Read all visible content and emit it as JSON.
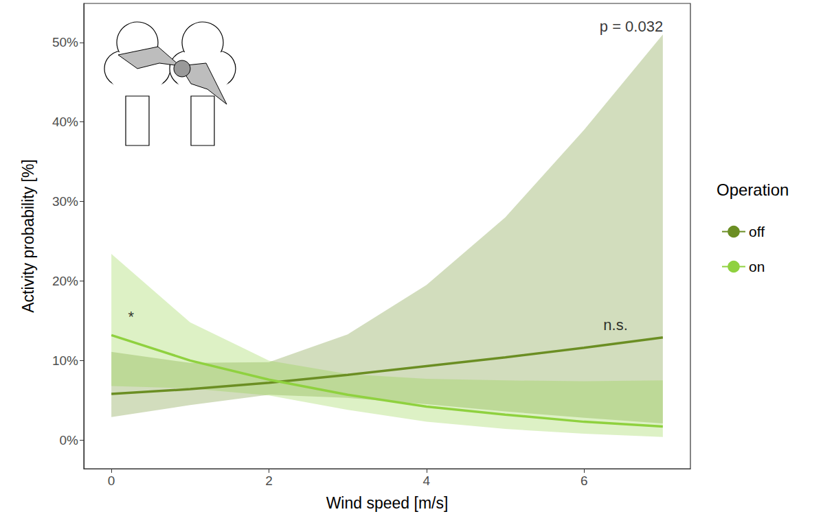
{
  "chart_data": {
    "type": "line",
    "xlabel": "Wind speed [m/s]",
    "ylabel": "Activity probability [%]",
    "x": [
      0,
      1,
      2,
      3,
      4,
      5,
      6,
      7
    ],
    "xlim": [
      -0.35,
      7.35
    ],
    "ylim": [
      -3.6,
      54.9
    ],
    "xticks": [
      0,
      2,
      4,
      6
    ],
    "yticks": [
      {
        "value": 0,
        "label": "0%"
      },
      {
        "value": 10,
        "label": "10%"
      },
      {
        "value": 20,
        "label": "20%"
      },
      {
        "value": 30,
        "label": "30%"
      },
      {
        "value": 40,
        "label": "40%"
      },
      {
        "value": 50,
        "label": "50%"
      }
    ],
    "grid": false,
    "legend": "right",
    "legend_title": "Operation",
    "series": [
      {
        "name": "off",
        "color": "#6b8e23",
        "values": [
          5.8,
          6.4,
          7.2,
          8.2,
          9.3,
          10.4,
          11.6,
          12.9
        ],
        "lower": [
          2.9,
          4.4,
          5.7,
          5.3,
          4.5,
          3.6,
          2.8,
          2.1
        ],
        "upper": [
          11.1,
          9.7,
          9.8,
          13.3,
          19.5,
          28.0,
          39.0,
          51.0
        ]
      },
      {
        "name": "on",
        "color": "#8fd13f",
        "values": [
          13.2,
          10.0,
          7.6,
          5.7,
          4.2,
          3.2,
          2.3,
          1.7
        ],
        "lower": [
          6.8,
          6.5,
          5.6,
          3.8,
          2.3,
          1.4,
          0.8,
          0.4
        ],
        "upper": [
          23.4,
          14.8,
          10.0,
          8.3,
          7.7,
          7.5,
          7.4,
          7.5
        ]
      }
    ],
    "annotations": [
      {
        "text": "p = 0.032",
        "x": 6.6,
        "y": 52.0
      },
      {
        "text": "*",
        "x": 0.25,
        "y": 15.5
      },
      {
        "text": "n.s.",
        "x": 6.4,
        "y": 14.5
      }
    ]
  }
}
